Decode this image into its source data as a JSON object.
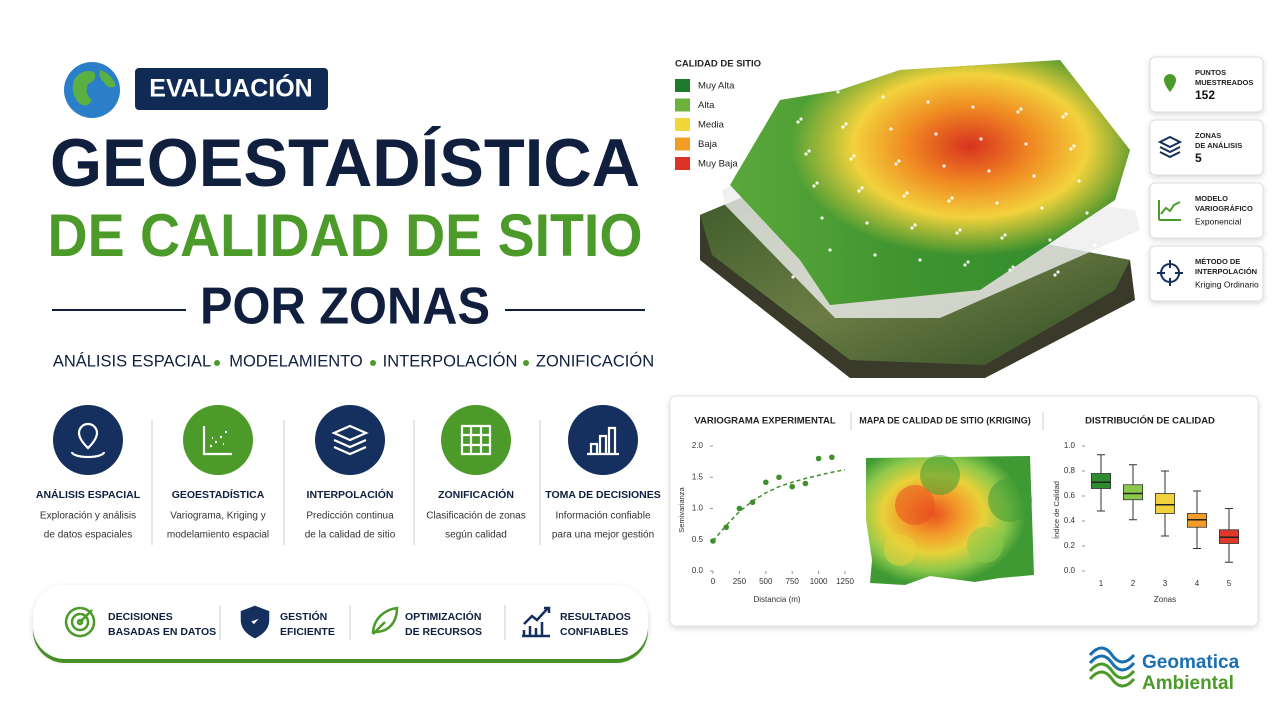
{
  "header": {
    "badge": "EVALUACIÓN",
    "title_line1": "GEOESTADÍSTICA",
    "title_line2": "DE CALIDAD DE SITIO",
    "title_line3": "POR ZONAS",
    "keywords": [
      "ANÁLISIS ESPACIAL",
      "MODELAMIENTO",
      "INTERPOLACIÓN",
      "ZONIFICACIÓN"
    ]
  },
  "features": [
    {
      "title": "ANÁLISIS ESPACIAL",
      "lines": [
        "Exploración y análisis",
        "de datos espaciales"
      ]
    },
    {
      "title": "GEOESTADÍSTICA",
      "lines": [
        "Variograma, Kriging y",
        "modelamiento espacial"
      ]
    },
    {
      "title": "INTERPOLACIÓN",
      "lines": [
        "Predicción continua",
        "de la calidad de sitio"
      ]
    },
    {
      "title": "ZONIFICACIÓN",
      "lines": [
        "Clasificación de zonas",
        "según calidad"
      ]
    },
    {
      "title": "TOMA DE DECISIONES",
      "lines": [
        "Información confiable",
        "para una mejor gestión"
      ]
    }
  ],
  "benefits": [
    {
      "lines": [
        "DECISIONES",
        "BASADAS EN DATOS"
      ]
    },
    {
      "lines": [
        "GESTIÓN",
        "EFICIENTE"
      ]
    },
    {
      "lines": [
        "OPTIMIZACIÓN",
        "DE RECURSOS"
      ]
    },
    {
      "lines": [
        "RESULTADOS",
        "CONFIABLES"
      ]
    }
  ],
  "map_legend": {
    "title": "CALIDAD DE SITIO",
    "items": [
      {
        "label": "Muy Alta",
        "color": "#1e7a2a"
      },
      {
        "label": "Alta",
        "color": "#6bb23a"
      },
      {
        "label": "Media",
        "color": "#f0d83a"
      },
      {
        "label": "Baja",
        "color": "#f39c24"
      },
      {
        "label": "Muy Baja",
        "color": "#dd3226"
      }
    ]
  },
  "stats": [
    {
      "label_lines": [
        "PUNTOS",
        "MUESTREADOS"
      ],
      "value": 152
    },
    {
      "label_lines": [
        "ZONAS",
        "DE ANÁLISIS"
      ],
      "value": 5
    },
    {
      "label_lines": [
        "MODELO",
        "VARIOGRÁFICO"
      ],
      "value": "Exponencial"
    },
    {
      "label_lines": [
        "MÉTODO DE",
        "INTERPOLACIÓN"
      ],
      "value": "Kriging Ordinario"
    }
  ],
  "chart_data": [
    {
      "type": "scatter",
      "title": "VARIOGRAMA EXPERIMENTAL",
      "x_label": "Distancia (m)",
      "y_label": "Semivarianza",
      "color": "#3f8f2a",
      "x": [
        0,
        125,
        250,
        375,
        500,
        625,
        750,
        875,
        1000,
        1125
      ],
      "y": [
        0.48,
        0.7,
        1.0,
        1.1,
        1.42,
        1.5,
        1.35,
        1.4,
        1.8,
        1.82
      ],
      "model": {
        "x": [
          0,
          125,
          250,
          375,
          500,
          625,
          750,
          875,
          1000,
          1125,
          1250
        ],
        "y": [
          0.48,
          0.73,
          0.95,
          1.12,
          1.25,
          1.35,
          1.42,
          1.48,
          1.53,
          1.58,
          1.62
        ]
      },
      "xlim": [
        0,
        1250
      ],
      "ylim": [
        0,
        2
      ],
      "xticks": [
        0,
        250,
        500,
        750,
        1000,
        1250
      ],
      "yticks": [
        {
          "value": 0,
          "label": "0.0"
        },
        0.5,
        {
          "value": 1,
          "label": "1.0"
        },
        1.5,
        {
          "value": 2,
          "label": "2.0"
        }
      ]
    },
    {
      "type": "map",
      "title": "MAPA DE CALIDAD DE SITIO (KRIGING)"
    },
    {
      "type": "box",
      "title": "DISTRIBUCIÓN DE CALIDAD",
      "x_label": "Zonas",
      "y_label": "Índice de Calidad",
      "categories": [
        "1",
        "2",
        "3",
        "4",
        "5"
      ],
      "min": [
        0.48,
        0.41,
        0.28,
        0.18,
        0.07
      ],
      "q1": [
        0.66,
        0.57,
        0.46,
        0.35,
        0.22
      ],
      "median": [
        0.71,
        0.62,
        0.53,
        0.41,
        0.27
      ],
      "q3": [
        0.78,
        0.69,
        0.62,
        0.46,
        0.33
      ],
      "max": [
        0.93,
        0.85,
        0.8,
        0.64,
        0.5
      ],
      "colors": [
        "#2e8b2e",
        "#8cc84b",
        "#f2d23c",
        "#f39c2a",
        "#e0382b"
      ],
      "ylim": [
        0,
        1
      ],
      "yticks": [
        {
          "value": 0,
          "label": "0.0"
        },
        0.2,
        0.4,
        0.6,
        0.8,
        {
          "value": 1,
          "label": "1.0"
        }
      ]
    }
  ],
  "brand": {
    "line1": "Geomatica",
    "line2": "Ambiental"
  }
}
